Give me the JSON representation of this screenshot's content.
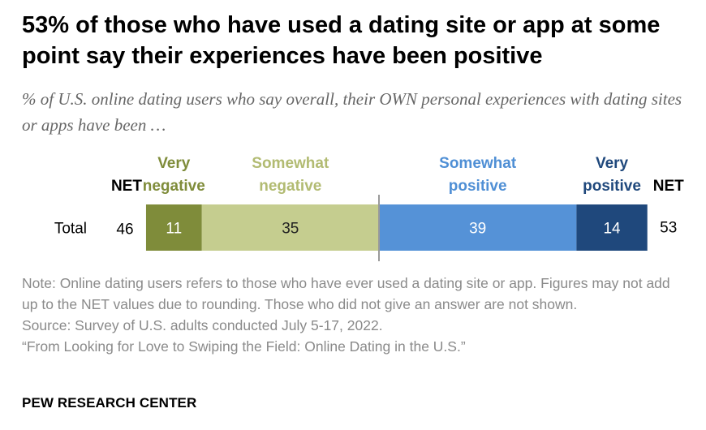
{
  "header": {
    "title": "53% of those who have used a dating site or app at some point say their experiences have been positive",
    "subtitle": "% of U.S. online dating users who say overall, their OWN personal experiences with dating sites or apps have been …"
  },
  "chart_data": {
    "type": "bar",
    "orientation": "horizontal-diverging-stacked",
    "categories": [
      "Total"
    ],
    "net_label": "NET",
    "net_negative": [
      46
    ],
    "net_positive": [
      53
    ],
    "series": [
      {
        "name": "Very negative",
        "label_lines": [
          "Very",
          "negative"
        ],
        "values": [
          11
        ],
        "color": "#7f8c3a",
        "label_color": "#7f8c3a",
        "value_text_color": "#ffffff",
        "side": "negative"
      },
      {
        "name": "Somewhat negative",
        "label_lines": [
          "Somewhat",
          "negative"
        ],
        "values": [
          35
        ],
        "color": "#c5cd8f",
        "label_color": "#b2bb72",
        "value_text_color": "#222222",
        "side": "negative"
      },
      {
        "name": "Somewhat positive",
        "label_lines": [
          "Somewhat",
          "positive"
        ],
        "values": [
          39
        ],
        "color": "#5592d7",
        "label_color": "#4f8fd5",
        "value_text_color": "#ffffff",
        "side": "positive"
      },
      {
        "name": "Very positive",
        "label_lines": [
          "Very",
          "positive"
        ],
        "values": [
          14
        ],
        "color": "#1f487c",
        "label_color": "#1f487c",
        "value_text_color": "#ffffff",
        "side": "positive"
      }
    ],
    "xlim": [
      -46,
      53
    ],
    "grid": false,
    "legend": "top"
  },
  "notes": {
    "note": "Note: Online dating users refers to those who have ever used a dating site or app. Figures may not add up to the NET values due to rounding. Those who did not give an answer are not shown.",
    "source": "Source: Survey of U.S. adults conducted July 5-17, 2022.",
    "report": "“From Looking for Love to Swiping the Field: Online Dating in the U.S.”"
  },
  "brand": "PEW RESEARCH CENTER"
}
